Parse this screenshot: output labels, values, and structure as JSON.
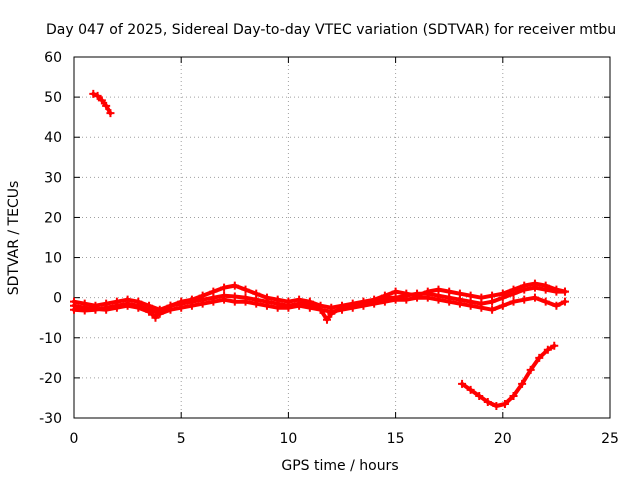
{
  "colors": {
    "series": "#ff0000",
    "grid": "#a0a0a0",
    "axis": "#000000"
  },
  "chart_data": {
    "type": "scatter",
    "title": "Day 047 of 2025, Sidereal Day-to-day VTEC variation (SDTVAR) for receiver mtbu",
    "xlabel": "GPS time / hours",
    "ylabel": "SDTVAR / TECUs",
    "xlim": [
      0,
      25
    ],
    "ylim": [
      -30,
      60
    ],
    "xticks": [
      "0",
      "5",
      "10",
      "15",
      "20",
      "25"
    ],
    "yticks": [
      "-30",
      "-20",
      "-10",
      "0",
      "10",
      "20",
      "30",
      "40",
      "50",
      "60"
    ],
    "grid": true,
    "series": [
      {
        "name": "upper-arc",
        "x": [
          0.9,
          1.1,
          1.3,
          1.5,
          1.7
        ],
        "y": [
          50.8,
          50.3,
          49.2,
          47.8,
          46.0
        ]
      },
      {
        "name": "main-band-a",
        "x": [
          0,
          0.5,
          1,
          1.5,
          2,
          2.5,
          3,
          3.5,
          3.8,
          4,
          4.5,
          5,
          5.5,
          6,
          6.5,
          7,
          7.5,
          8,
          8.5,
          9,
          9.5,
          10,
          10.5,
          11,
          11.5,
          11.8,
          12,
          12.5,
          13,
          13.5,
          14,
          14.5,
          15,
          15.5,
          16,
          16.5,
          17,
          17.5,
          18,
          18.5,
          19,
          19.5,
          20,
          20.5,
          21,
          21.5,
          22,
          22.5,
          22.9
        ],
        "y": [
          -2,
          -2.5,
          -2.8,
          -3,
          -2.5,
          -2,
          -2.5,
          -3.5,
          -5,
          -3.5,
          -2,
          -1.5,
          -1,
          -0.5,
          0,
          0.5,
          0.3,
          0,
          -0.5,
          -1,
          -1.5,
          -2,
          -1.5,
          -1.5,
          -3,
          -5.5,
          -4,
          -2.5,
          -2,
          -1.5,
          -1,
          0,
          0,
          0.5,
          1,
          1,
          0.5,
          0,
          -0.5,
          -1,
          -1.5,
          -1,
          0,
          1,
          2,
          2.5,
          2,
          1.5,
          1.5
        ]
      },
      {
        "name": "main-band-b",
        "x": [
          0,
          0.5,
          1,
          1.5,
          2,
          2.5,
          3,
          3.5,
          4,
          4.5,
          5,
          5.5,
          6,
          6.5,
          7,
          7.5,
          8,
          8.5,
          9,
          9.5,
          10,
          10.5,
          11,
          11.5,
          12,
          12.5,
          13,
          13.5,
          14,
          14.5,
          15,
          15.5,
          16,
          16.5,
          17,
          17.5,
          18,
          18.5,
          19,
          19.5,
          20,
          20.5,
          21,
          21.5,
          22,
          22.5,
          22.9
        ],
        "y": [
          -1,
          -1.5,
          -2,
          -1.5,
          -1,
          -0.5,
          -1,
          -2,
          -3,
          -2,
          -1,
          -0.5,
          0.5,
          1.5,
          2.5,
          3,
          2,
          1,
          0,
          -0.5,
          -1,
          -0.5,
          -1,
          -2,
          -2.5,
          -2,
          -1.5,
          -1,
          -0.5,
          0.5,
          1.5,
          1,
          0.5,
          1.5,
          2,
          1.5,
          1,
          0.5,
          0,
          0.5,
          1,
          2,
          3,
          3.5,
          3,
          2,
          1.5
        ]
      },
      {
        "name": "main-band-c",
        "x": [
          0,
          0.5,
          1,
          1.5,
          2,
          2.5,
          3,
          3.5,
          4,
          4.5,
          5,
          5.5,
          6,
          6.5,
          7,
          7.5,
          8,
          8.5,
          9,
          9.5,
          10,
          10.5,
          11,
          11.5,
          12,
          12.5,
          13,
          13.5,
          14,
          14.5,
          15,
          15.5,
          16,
          16.5,
          17,
          17.5,
          18,
          18.5,
          19,
          19.5,
          20,
          20.5,
          21,
          21.5,
          22,
          22.5,
          22.9
        ],
        "y": [
          -3,
          -3.2,
          -3,
          -2.5,
          -2,
          -1.5,
          -2,
          -3,
          -4,
          -3,
          -2.5,
          -2,
          -1.5,
          -1,
          -0.5,
          -1,
          -1,
          -1.5,
          -2,
          -2.5,
          -2.5,
          -2,
          -2.5,
          -3,
          -3.5,
          -3,
          -2.5,
          -2,
          -1.5,
          -1,
          -0.5,
          -0.5,
          0,
          0,
          -0.5,
          -1,
          -1.5,
          -2,
          -2.5,
          -3,
          -2,
          -1,
          -0.5,
          0,
          -1,
          -2,
          -1
        ]
      },
      {
        "name": "lower-arc",
        "x": [
          18.1,
          18.5,
          18.9,
          19.3,
          19.7,
          20.1,
          20.5,
          20.9,
          21.3,
          21.7,
          22.1,
          22.4
        ],
        "y": [
          -21.5,
          -23,
          -24.5,
          -26,
          -27,
          -26.5,
          -24.5,
          -21.5,
          -18,
          -15,
          -13,
          -12
        ]
      }
    ]
  }
}
